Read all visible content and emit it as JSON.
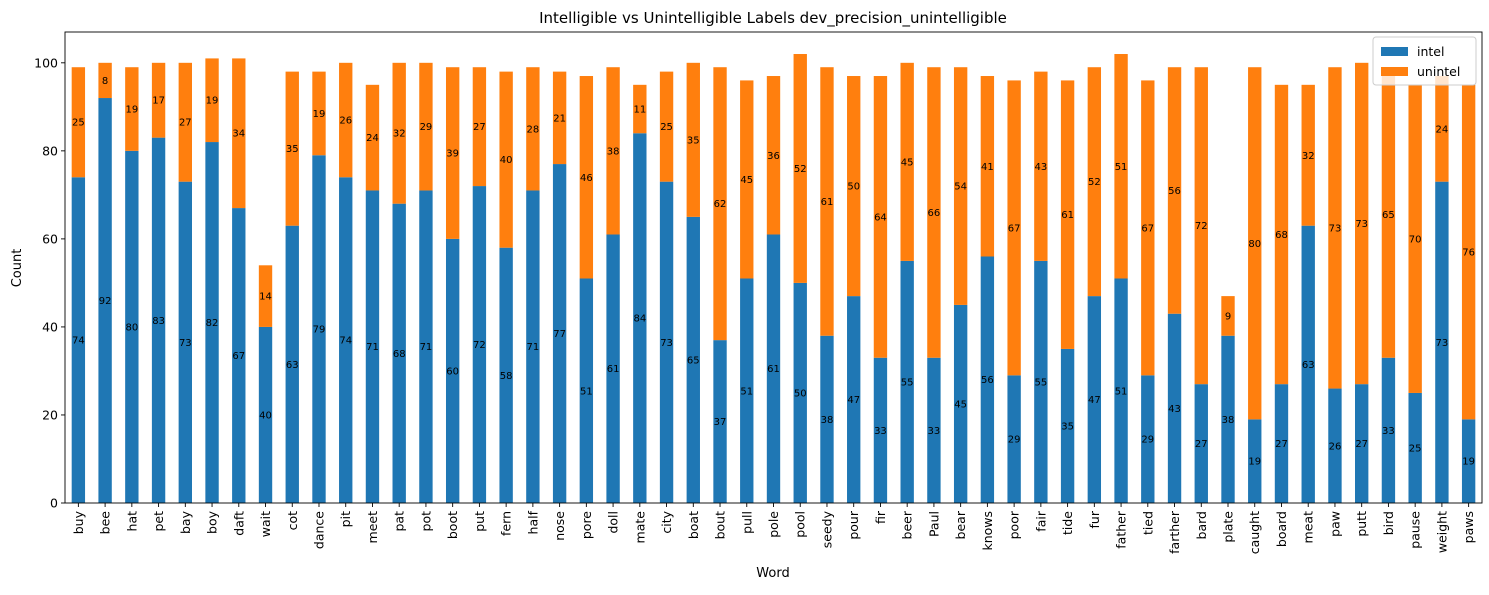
{
  "chart_data": {
    "type": "bar",
    "stacked": true,
    "title": "Intelligible vs Unintelligible Labels dev_precision_unintelligible",
    "xlabel": "Word",
    "ylabel": "Count",
    "ylim": [
      0,
      107
    ],
    "yticks": [
      0,
      20,
      40,
      60,
      80,
      100
    ],
    "grid": false,
    "legend_position": "top-right",
    "categories": [
      "buy",
      "bee",
      "hat",
      "pet",
      "bay",
      "boy",
      "daft",
      "wait",
      "cot",
      "dance",
      "pit",
      "meet",
      "pat",
      "pot",
      "boot",
      "put",
      "fern",
      "half",
      "nose",
      "pore",
      "doll",
      "mate",
      "city",
      "boat",
      "bout",
      "pull",
      "pole",
      "pool",
      "seedy",
      "pour",
      "fir",
      "beer",
      "Paul",
      "bear",
      "knows",
      "poor",
      "fair",
      "tide",
      "fur",
      "father",
      "tied",
      "farther",
      "bard",
      "plate",
      "caught",
      "board",
      "meat",
      "paw",
      "putt",
      "bird",
      "pause",
      "weight",
      "paws"
    ],
    "series": [
      {
        "name": "intel",
        "color": "#1f77b4",
        "values": [
          74,
          92,
          80,
          83,
          73,
          82,
          67,
          40,
          63,
          79,
          74,
          71,
          68,
          71,
          60,
          72,
          58,
          71,
          77,
          51,
          61,
          84,
          73,
          65,
          37,
          51,
          61,
          50,
          38,
          47,
          33,
          55,
          33,
          45,
          56,
          29,
          55,
          35,
          47,
          51,
          29,
          43,
          27,
          38,
          19,
          27,
          63,
          26,
          27,
          33,
          25,
          73,
          19
        ],
        "labels": [
          "74",
          "92",
          "80",
          "83",
          "73",
          "82",
          "67",
          "40",
          "63",
          "79",
          "74",
          "71",
          "68",
          "71",
          "60",
          "72",
          "58",
          "71",
          "77",
          "51",
          "61",
          "84",
          "73",
          "65",
          "37",
          "51",
          "61",
          "50",
          "38",
          "47",
          "33",
          "55",
          "33",
          "45",
          "56",
          "29",
          "55",
          "35",
          "47",
          "51",
          "29",
          "43",
          "27",
          "38",
          "19",
          "27",
          "63",
          "26",
          "27",
          "33",
          "25",
          "73",
          "19"
        ]
      },
      {
        "name": "unintel",
        "color": "#ff7f0e",
        "values": [
          25,
          8,
          19,
          17,
          27,
          19,
          34,
          14,
          35,
          19,
          26,
          24,
          32,
          29,
          39,
          27,
          40,
          28,
          21,
          46,
          38,
          11,
          25,
          35,
          62,
          45,
          36,
          52,
          61,
          50,
          64,
          45,
          66,
          54,
          41,
          67,
          43,
          61,
          52,
          51,
          67,
          56,
          72,
          9,
          80,
          68,
          32,
          73,
          73,
          65,
          70,
          24,
          76
        ],
        "labels": [
          "25",
          "8",
          "19",
          "17",
          "27",
          "19",
          "34",
          "14",
          "35",
          "19",
          "26",
          "24",
          "32",
          "29",
          "39",
          "27",
          "40",
          "28",
          "21",
          "46",
          "38",
          "11",
          "25",
          "35",
          "62",
          "45",
          "36",
          "52",
          "61",
          "50",
          "64",
          "45",
          "66",
          "54",
          "41",
          "67",
          "43",
          "61",
          "52",
          "51",
          "67",
          "56",
          "72",
          "9",
          "80",
          "68",
          "32",
          "73",
          "73",
          "65",
          "70",
          "24",
          "76"
        ]
      }
    ]
  }
}
